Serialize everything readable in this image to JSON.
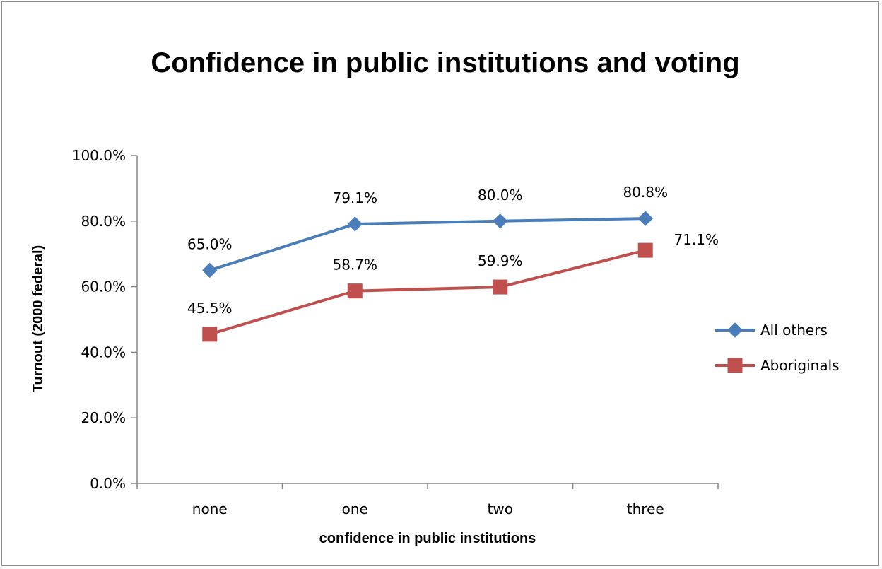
{
  "chart_data": {
    "type": "line",
    "title": "Confidence in public institutions and voting",
    "xlabel": "confidence in public institutions",
    "ylabel": "Turnout (2000 federal)",
    "categories": [
      "none",
      "one",
      "two",
      "three"
    ],
    "ylim": [
      0,
      100
    ],
    "yticks": [
      "0.0%",
      "20.0%",
      "40.0%",
      "60.0%",
      "80.0%",
      "100.0%"
    ],
    "grid": false,
    "legend_position": "right",
    "series": [
      {
        "name": "All others",
        "values": [
          65.0,
          79.1,
          80.0,
          80.8
        ],
        "labels": [
          "65.0%",
          "79.1%",
          "80.0%",
          "80.8%"
        ],
        "color": "#4a7ebb",
        "marker": "diamond"
      },
      {
        "name": "Aboriginals",
        "values": [
          45.5,
          58.7,
          59.9,
          71.1
        ],
        "labels": [
          "45.5%",
          "58.7%",
          "59.9%",
          "71.1%"
        ],
        "color": "#c0504d",
        "marker": "square"
      }
    ]
  }
}
